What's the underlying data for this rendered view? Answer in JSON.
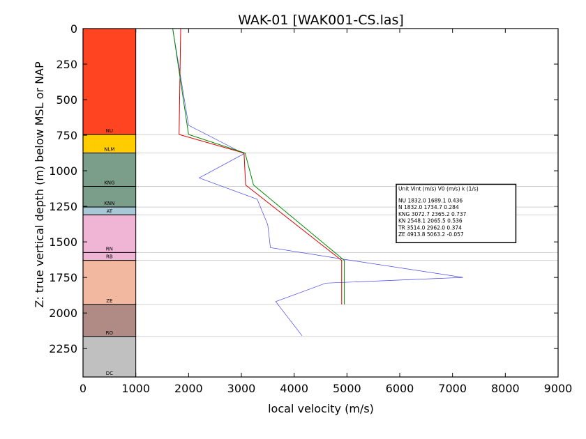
{
  "chart_data": {
    "type": "line",
    "title": "WAK-01 [WAK001-CS.las]",
    "xlabel": "local velocity (m/s)",
    "ylabel": "Z: true vertical depth (m) below MSL or NAP",
    "xlim": [
      0,
      9000
    ],
    "ylim": [
      2450,
      0
    ],
    "x_ticks": [
      "0",
      "1000",
      "2000",
      "3000",
      "4000",
      "5000",
      "6000",
      "7000",
      "8000",
      "9000"
    ],
    "y_ticks": [
      "0",
      "250",
      "500",
      "750",
      "1000",
      "1250",
      "1500",
      "1750",
      "2000",
      "2250"
    ],
    "grid": "horizontal lines at unit boundaries",
    "units": [
      {
        "label": "NU",
        "top": 0,
        "bottom": 745,
        "color": "#ff4422"
      },
      {
        "label": "NLM",
        "top": 745,
        "bottom": 875,
        "color": "#ffcc00"
      },
      {
        "label": "KNG",
        "top": 875,
        "bottom": 1110,
        "color": "#7a9e8a"
      },
      {
        "label": "KNN",
        "top": 1110,
        "bottom": 1255,
        "color": "#7a9e8a"
      },
      {
        "label": "AT",
        "top": 1255,
        "bottom": 1310,
        "color": "#a8c8d8"
      },
      {
        "label": "RN",
        "top": 1310,
        "bottom": 1575,
        "color": "#f0b4d4"
      },
      {
        "label": "RB",
        "top": 1575,
        "bottom": 1630,
        "color": "#f0b4d4"
      },
      {
        "label": "ZE",
        "top": 1630,
        "bottom": 1940,
        "color": "#f2b8a0"
      },
      {
        "label": "RO",
        "top": 1940,
        "bottom": 2165,
        "color": "#b08a84"
      },
      {
        "label": "DC",
        "top": 2165,
        "bottom": 2450,
        "color": "#c0c0c0"
      }
    ],
    "series": [
      {
        "color": "#4444ee",
        "points": [
          [
            1700,
            0
          ],
          [
            2000,
            680
          ],
          [
            3050,
            880
          ],
          [
            2200,
            1050
          ],
          [
            3300,
            1200
          ],
          [
            3500,
            1380
          ],
          [
            3550,
            1540
          ],
          [
            4900,
            1620
          ],
          [
            7200,
            1750
          ],
          [
            4600,
            1790
          ],
          [
            3650,
            1920
          ],
          [
            4150,
            2160
          ]
        ]
      },
      {
        "color": "#dd0000",
        "points": [
          [
            1850,
            0
          ],
          [
            1820,
            745
          ],
          [
            3050,
            875
          ],
          [
            3080,
            1100
          ],
          [
            4900,
            1630
          ],
          [
            4900,
            1940
          ]
        ]
      },
      {
        "color": "#008800",
        "points": [
          [
            1700,
            0
          ],
          [
            2000,
            745
          ],
          [
            3070,
            875
          ],
          [
            3230,
            1100
          ],
          [
            4950,
            1630
          ],
          [
            4950,
            1940
          ]
        ]
      }
    ],
    "legend": {
      "placement": "right",
      "header": "Unit    Vint (m/s)      V0 (m/s)          k (1/s)",
      "rows": [
        "NU      1832.0  1689.1  0.436",
        "N       1832.0  1734.7  0.284",
        "KNG      3072.7  2365.2  0.737",
        "KN      2548.1  2065.5  0.536",
        "TR      3514.0  2962.0  0.374",
        "ZE      4913.8  5063.2  -0.057"
      ]
    }
  }
}
